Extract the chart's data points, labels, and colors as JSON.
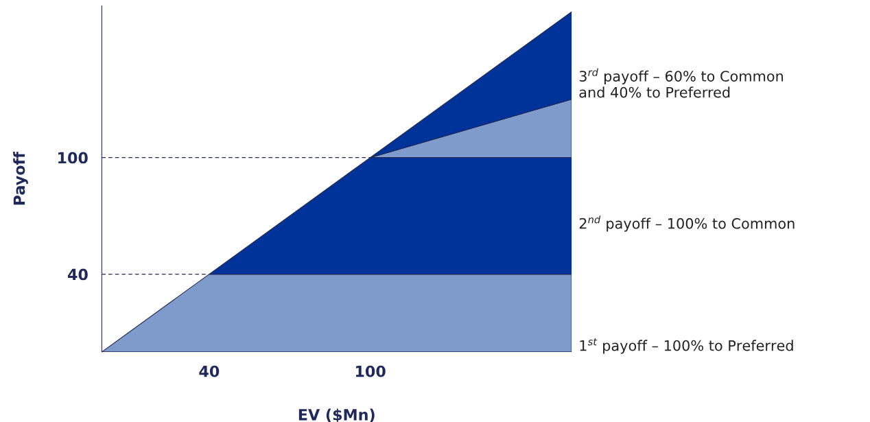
{
  "chart_data": {
    "type": "area",
    "stacked": true,
    "xlabel": "EV ($Mn)",
    "ylabel": "Payoff",
    "x": [
      0,
      40,
      100,
      175
    ],
    "series": [
      {
        "color": "#7f9bcb",
        "values": [
          0,
          40,
          40,
          40
        ]
      },
      {
        "color": "#003399",
        "values": [
          null,
          0,
          60,
          60
        ]
      },
      {
        "color": "#7f9bcb",
        "values": [
          null,
          null,
          0,
          30
        ]
      },
      {
        "color": "#003399",
        "values": [
          null,
          null,
          0,
          45
        ]
      }
    ],
    "xlim": [
      0,
      175
    ],
    "ylim": [
      0,
      178
    ],
    "xticks": [
      40,
      100
    ],
    "yticks": [
      40,
      100
    ],
    "ref_lines": [
      {
        "axis": "y",
        "value": 40,
        "line_style": "dashed",
        "color": "#1f2a5a"
      },
      {
        "axis": "y",
        "value": 100,
        "line_style": "dashed",
        "color": "#1f2a5a"
      }
    ],
    "annotations": [
      "3$^{rd}$ payoff – 60% to Common\nand 40% to Preferred",
      "2$^{nd}$ payoff – 100% to Common",
      "1$^{st}$ payoff – 100% to Preferred"
    ],
    "grid": false,
    "legend": false
  }
}
